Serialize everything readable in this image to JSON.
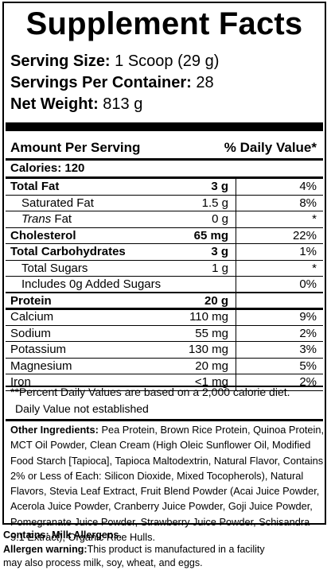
{
  "title": "Supplement Facts",
  "serving_size": {
    "label": "Serving Size:",
    "value": " 1 Scoop (29 g)"
  },
  "servings_per_container": {
    "label": "Servings Per Container:",
    "value": " 28"
  },
  "net_weight": {
    "label": "Net Weight:",
    "value": " 813 g"
  },
  "table_header": {
    "amount_per_serving": "Amount Per Serving",
    "daily_value": "% Daily Value*"
  },
  "calories": "Calories: 120",
  "nutrients": [
    {
      "name": "Total Fat",
      "amount": "3 g",
      "dv": "4%",
      "bold": true,
      "indent": false
    },
    {
      "name": "Saturated Fat",
      "amount": "1.5 g",
      "dv": "8%",
      "bold": false,
      "indent": true
    },
    {
      "name_italic": "Trans",
      "name": " Fat",
      "amount": "0 g",
      "dv": "*",
      "bold": false,
      "indent": true
    },
    {
      "name": "Cholesterol",
      "amount": "65 mg",
      "dv": "22%",
      "bold": true,
      "indent": false
    },
    {
      "name": "Total Carbohydrates",
      "amount": "3 g",
      "dv": "1%",
      "bold": true,
      "indent": false
    },
    {
      "name": "Total Sugars",
      "amount": "1 g",
      "dv": "*",
      "bold": false,
      "indent": true
    },
    {
      "name": "Includes 0g Added Sugars",
      "amount": "",
      "dv": "0%",
      "bold": false,
      "indent": true
    },
    {
      "name": "Protein",
      "amount": "20 g",
      "dv": "",
      "bold": true,
      "indent": false
    },
    {
      "name": "Calcium",
      "amount": "110 mg",
      "dv": "9%",
      "bold": false,
      "indent": false
    },
    {
      "name": "Sodium",
      "amount": "55 mg",
      "dv": "2%",
      "bold": false,
      "indent": false
    },
    {
      "name": "Potassium",
      "amount": "130 mg",
      "dv": "3%",
      "bold": false,
      "indent": false
    },
    {
      "name": "Magnesium",
      "amount": "20 mg",
      "dv": "5%",
      "bold": false,
      "indent": false
    },
    {
      "name": "Iron",
      "amount": "<1 mg",
      "dv": "2%",
      "bold": false,
      "indent": false
    }
  ],
  "footnote_1": "**Percent Daily Values are based on a 2,000 calorie diet.",
  "footnote_2": "Daily Value not established",
  "other_ingredients": {
    "label": "Other Ingredients:",
    "text": " Pea Protein, Brown Rice Protein, Quinoa Protein, MCT Oil Powder, Clean Cream (High Oleic Sunflower Oil, Modified Food Starch [Tapioca], Tapioca Maltodextrin, Natural Flavor, Contains 2% or Less of Each: Silicon Dioxide, Mixed Tocopherols), Natural Flavors, Stevia Leaf Extract, Fruit Blend Powder (Acai Juice Powder, Acerola Juice Powder, Cranberry Juice Powder, Goji Juice Powder, Pomegranate Juice Powder, Strawberry Juice Powder, Schisandra 5:1 Extract), Organic Rice Hulls."
  },
  "contains": "Contains: Milk Allergens.",
  "allergen_warning": {
    "label": "Allergen warning:",
    "line1": "This product is manufactured in a facility",
    "line2": "may also process milk, soy, wheat, and eggs."
  }
}
